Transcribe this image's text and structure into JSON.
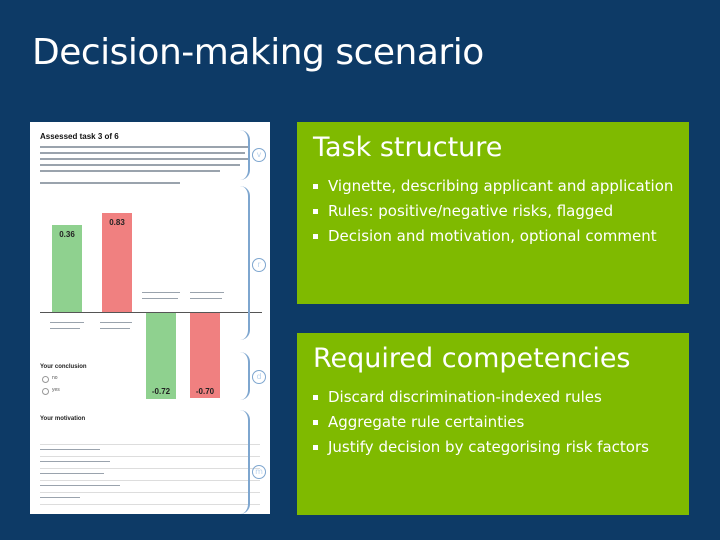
{
  "slide": {
    "title": "Decision-making scenario"
  },
  "screenshot": {
    "heading": "Assessed task 3 of 6",
    "bars": [
      {
        "value": "0.36",
        "color": "#8fd18f"
      },
      {
        "value": "0.83",
        "color": "#f08080"
      },
      {
        "value": "-0.72",
        "color": "#8fd18f"
      },
      {
        "value": "-0.70",
        "color": "#f08080"
      }
    ],
    "section_titles": [
      "Your conclusion",
      "Your motivation"
    ],
    "radio_options": [
      "no",
      "yes"
    ]
  },
  "braces": [
    "v",
    "r",
    "d",
    "m"
  ],
  "task_structure": {
    "title": "Task structure",
    "items": [
      "Vignette, describing applicant and application",
      "Rules: positive/negative risks, flagged",
      "Decision and motivation, optional comment"
    ]
  },
  "required_competencies": {
    "title": "Required competencies",
    "items": [
      "Discard discrimination-indexed rules",
      "Aggregate rule certainties",
      "Justify decision by categorising risk factors"
    ]
  }
}
